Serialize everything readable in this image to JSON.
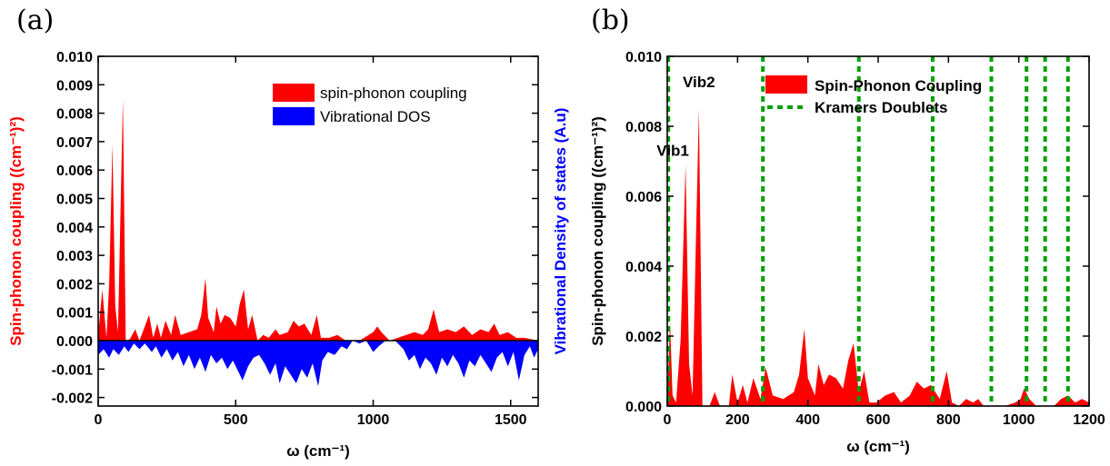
{
  "panels": {
    "a": "(a)",
    "b": "(b)"
  },
  "colors": {
    "spin": "#ff0000",
    "dos": "#0000ff",
    "kramers": "#00a000"
  },
  "chart_data": [
    {
      "panel": "(a)",
      "type": "area",
      "xlabel": "ω (cm⁻¹)",
      "ylabel": "Spin-phonon coupling ((cm⁻¹)²)",
      "ylabel_right": "Vibrational Density of states (A.u)",
      "xlim": [
        0,
        1600
      ],
      "ylim": [
        -0.0023,
        0.01
      ],
      "xticks": [
        "0",
        "500",
        "1000",
        "1500"
      ],
      "yticks": [
        "-0.002",
        "-0.001",
        "0.000",
        "0.001",
        "0.002",
        "0.003",
        "0.004",
        "0.005",
        "0.006",
        "0.007",
        "0.008",
        "0.009",
        "0.010"
      ],
      "legend_position": "top-right",
      "series": [
        {
          "name": "spin-phonon coupling",
          "color": "#ff0000",
          "points": [
            [
              0,
              0.0002
            ],
            [
              15,
              0.0018
            ],
            [
              30,
              0.0001
            ],
            [
              40,
              0.002
            ],
            [
              52,
              0.0069
            ],
            [
              62,
              0.0012
            ],
            [
              72,
              0.0003
            ],
            [
              80,
              0.004
            ],
            [
              90,
              0.0085
            ],
            [
              100,
              0.0
            ],
            [
              115,
              5e-05
            ],
            [
              135,
              0.0004
            ],
            [
              150,
              0.0
            ],
            [
              185,
              0.0009
            ],
            [
              200,
              0.0001
            ],
            [
              215,
              0.0006
            ],
            [
              228,
              0.0001
            ],
            [
              245,
              0.0007
            ],
            [
              265,
              0.0002
            ],
            [
              280,
              0.0009
            ],
            [
              300,
              0.0002
            ],
            [
              330,
              0.0003
            ],
            [
              360,
              0.0004
            ],
            [
              375,
              0.0009
            ],
            [
              390,
              0.0022
            ],
            [
              400,
              0.0008
            ],
            [
              420,
              0.0003
            ],
            [
              430,
              0.0012
            ],
            [
              445,
              0.0006
            ],
            [
              460,
              0.0009
            ],
            [
              480,
              0.0008
            ],
            [
              500,
              0.0005
            ],
            [
              515,
              0.0013
            ],
            [
              530,
              0.0018
            ],
            [
              545,
              0.0004
            ],
            [
              560,
              0.0009
            ],
            [
              580,
              0.0
            ],
            [
              600,
              0.0002
            ],
            [
              620,
              0.0001
            ],
            [
              645,
              0.0004
            ],
            [
              660,
              0.0002
            ],
            [
              690,
              0.0003
            ],
            [
              710,
              0.0007
            ],
            [
              730,
              0.0005
            ],
            [
              750,
              0.0006
            ],
            [
              775,
              0.0002
            ],
            [
              795,
              0.0009
            ],
            [
              810,
              0.0001
            ],
            [
              840,
              0.0001
            ],
            [
              870,
              0.0002
            ],
            [
              900,
              0.0
            ],
            [
              950,
              0.0
            ],
            [
              1000,
              0.0003
            ],
            [
              1015,
              0.0005
            ],
            [
              1030,
              0.0003
            ],
            [
              1060,
              0.0
            ],
            [
              1120,
              0.0002
            ],
            [
              1150,
              0.0003
            ],
            [
              1180,
              0.0002
            ],
            [
              1200,
              0.0004
            ],
            [
              1220,
              0.0011
            ],
            [
              1240,
              0.0003
            ],
            [
              1270,
              0.0004
            ],
            [
              1300,
              0.0003
            ],
            [
              1330,
              0.0005
            ],
            [
              1360,
              0.0002
            ],
            [
              1390,
              0.0004
            ],
            [
              1420,
              0.0003
            ],
            [
              1440,
              0.0006
            ],
            [
              1460,
              0.0002
            ],
            [
              1490,
              0.0003
            ],
            [
              1520,
              0.0001
            ],
            [
              1550,
              0.0001
            ],
            [
              1600,
              0.0
            ]
          ]
        },
        {
          "name": "Vibrational DOS",
          "color": "#0000ff",
          "points": [
            [
              0,
              -0.0005
            ],
            [
              20,
              -0.0003
            ],
            [
              40,
              -0.0006
            ],
            [
              55,
              -0.0003
            ],
            [
              75,
              -0.0005
            ],
            [
              95,
              -0.0002
            ],
            [
              110,
              -0.0004
            ],
            [
              130,
              -0.0001
            ],
            [
              150,
              -0.0003
            ],
            [
              170,
              -0.0001
            ],
            [
              195,
              -0.0004
            ],
            [
              210,
              -0.0002
            ],
            [
              230,
              -0.0006
            ],
            [
              250,
              -0.0003
            ],
            [
              270,
              -0.0007
            ],
            [
              290,
              -0.0004
            ],
            [
              310,
              -0.0009
            ],
            [
              330,
              -0.0005
            ],
            [
              350,
              -0.001
            ],
            [
              370,
              -0.0006
            ],
            [
              390,
              -0.0011
            ],
            [
              410,
              -0.0005
            ],
            [
              430,
              -0.0008
            ],
            [
              450,
              -0.0006
            ],
            [
              470,
              -0.001
            ],
            [
              490,
              -0.0007
            ],
            [
              510,
              -0.0011
            ],
            [
              525,
              -0.0014
            ],
            [
              545,
              -0.0009
            ],
            [
              565,
              -0.0006
            ],
            [
              585,
              -0.0005
            ],
            [
              605,
              -0.0008
            ],
            [
              625,
              -0.0012
            ],
            [
              645,
              -0.0008
            ],
            [
              660,
              -0.0015
            ],
            [
              680,
              -0.0009
            ],
            [
              700,
              -0.0012
            ],
            [
              720,
              -0.0015
            ],
            [
              740,
              -0.001
            ],
            [
              760,
              -0.0013
            ],
            [
              780,
              -0.0008
            ],
            [
              800,
              -0.0016
            ],
            [
              815,
              -0.0007
            ],
            [
              835,
              -0.0004
            ],
            [
              860,
              -0.0005
            ],
            [
              885,
              -0.0002
            ],
            [
              905,
              -0.0003
            ],
            [
              925,
              0.0
            ],
            [
              950,
              -0.0001
            ],
            [
              975,
              0.0
            ],
            [
              1000,
              -0.0004
            ],
            [
              1020,
              -0.0002
            ],
            [
              1045,
              0.0
            ],
            [
              1080,
              0.0
            ],
            [
              1110,
              -0.0003
            ],
            [
              1130,
              -0.0007
            ],
            [
              1150,
              -0.0005
            ],
            [
              1170,
              -0.001
            ],
            [
              1190,
              -0.0006
            ],
            [
              1210,
              -0.0008
            ],
            [
              1230,
              -0.0012
            ],
            [
              1250,
              -0.0006
            ],
            [
              1270,
              -0.0009
            ],
            [
              1290,
              -0.0005
            ],
            [
              1310,
              -0.0008
            ],
            [
              1330,
              -0.0013
            ],
            [
              1350,
              -0.0007
            ],
            [
              1370,
              -0.0009
            ],
            [
              1390,
              -0.0005
            ],
            [
              1410,
              -0.0008
            ],
            [
              1430,
              -0.0011
            ],
            [
              1450,
              -0.0006
            ],
            [
              1470,
              -0.0004
            ],
            [
              1490,
              -0.0009
            ],
            [
              1510,
              -0.0004
            ],
            [
              1530,
              -0.0014
            ],
            [
              1550,
              -0.0005
            ],
            [
              1570,
              -0.0002
            ],
            [
              1585,
              -0.0006
            ],
            [
              1600,
              -0.0003
            ]
          ]
        }
      ]
    },
    {
      "panel": "(b)",
      "type": "area",
      "xlabel": "ω (cm⁻¹)",
      "ylabel": "Spin-phonon coupling ((cm⁻¹)²)",
      "xlim": [
        0,
        1200
      ],
      "ylim": [
        0,
        0.01
      ],
      "xticks": [
        "0",
        "200",
        "400",
        "600",
        "800",
        "1000",
        "1200"
      ],
      "yticks": [
        "0.000",
        "0.002",
        "0.004",
        "0.006",
        "0.008",
        "0.010"
      ],
      "legend_position": "top",
      "annotations": [
        {
          "text": "Vib1",
          "x": 52,
          "y": 0.0069
        },
        {
          "text": "Vib2",
          "x": 90,
          "y": 0.0085
        }
      ],
      "series": [
        {
          "name": "Spin-Phonon Coupling",
          "color": "#ff0000",
          "points": [
            [
              0,
              0.0002
            ],
            [
              8,
              0.0024
            ],
            [
              15,
              0.0003
            ],
            [
              25,
              0.0001
            ],
            [
              38,
              0.0019
            ],
            [
              52,
              0.0069
            ],
            [
              62,
              0.0012
            ],
            [
              72,
              0.0003
            ],
            [
              80,
              0.004
            ],
            [
              90,
              0.0085
            ],
            [
              100,
              0.0
            ],
            [
              120,
              0.0
            ],
            [
              135,
              0.0004
            ],
            [
              150,
              0.0
            ],
            [
              175,
              0.0
            ],
            [
              185,
              0.0009
            ],
            [
              200,
              0.0001
            ],
            [
              215,
              0.0006
            ],
            [
              228,
              0.0001
            ],
            [
              245,
              0.0008
            ],
            [
              265,
              0.0002
            ],
            [
              280,
              0.0011
            ],
            [
              300,
              0.0003
            ],
            [
              330,
              0.0002
            ],
            [
              360,
              0.0004
            ],
            [
              375,
              0.0009
            ],
            [
              390,
              0.0022
            ],
            [
              400,
              0.0008
            ],
            [
              420,
              0.0003
            ],
            [
              430,
              0.0012
            ],
            [
              445,
              0.0006
            ],
            [
              460,
              0.0009
            ],
            [
              480,
              0.0008
            ],
            [
              500,
              0.0005
            ],
            [
              515,
              0.0013
            ],
            [
              530,
              0.0018
            ],
            [
              545,
              0.0004
            ],
            [
              560,
              0.001
            ],
            [
              575,
              0.0001
            ],
            [
              595,
              0.0001
            ],
            [
              620,
              0.0003
            ],
            [
              645,
              0.0004
            ],
            [
              665,
              0.0001
            ],
            [
              690,
              0.0003
            ],
            [
              710,
              0.0007
            ],
            [
              730,
              0.0005
            ],
            [
              750,
              0.0006
            ],
            [
              775,
              0.0002
            ],
            [
              795,
              0.001
            ],
            [
              810,
              0.0001
            ],
            [
              830,
              0.0
            ],
            [
              850,
              0.0002
            ],
            [
              870,
              0.0001
            ],
            [
              885,
              0.0002
            ],
            [
              900,
              0.0
            ],
            [
              960,
              0.0
            ],
            [
              990,
              0.0001
            ],
            [
              1005,
              0.0002
            ],
            [
              1015,
              0.0005
            ],
            [
              1030,
              0.0002
            ],
            [
              1050,
              0.0
            ],
            [
              1100,
              0.0
            ],
            [
              1120,
              0.0002
            ],
            [
              1140,
              0.0003
            ],
            [
              1160,
              0.0001
            ],
            [
              1180,
              0.0002
            ],
            [
              1200,
              0.0001
            ]
          ]
        },
        {
          "name": "Kramers Doublets",
          "color": "#00a000",
          "x": [
            3,
            272,
            545,
            755,
            922,
            1022,
            1075,
            1140
          ]
        }
      ]
    }
  ]
}
